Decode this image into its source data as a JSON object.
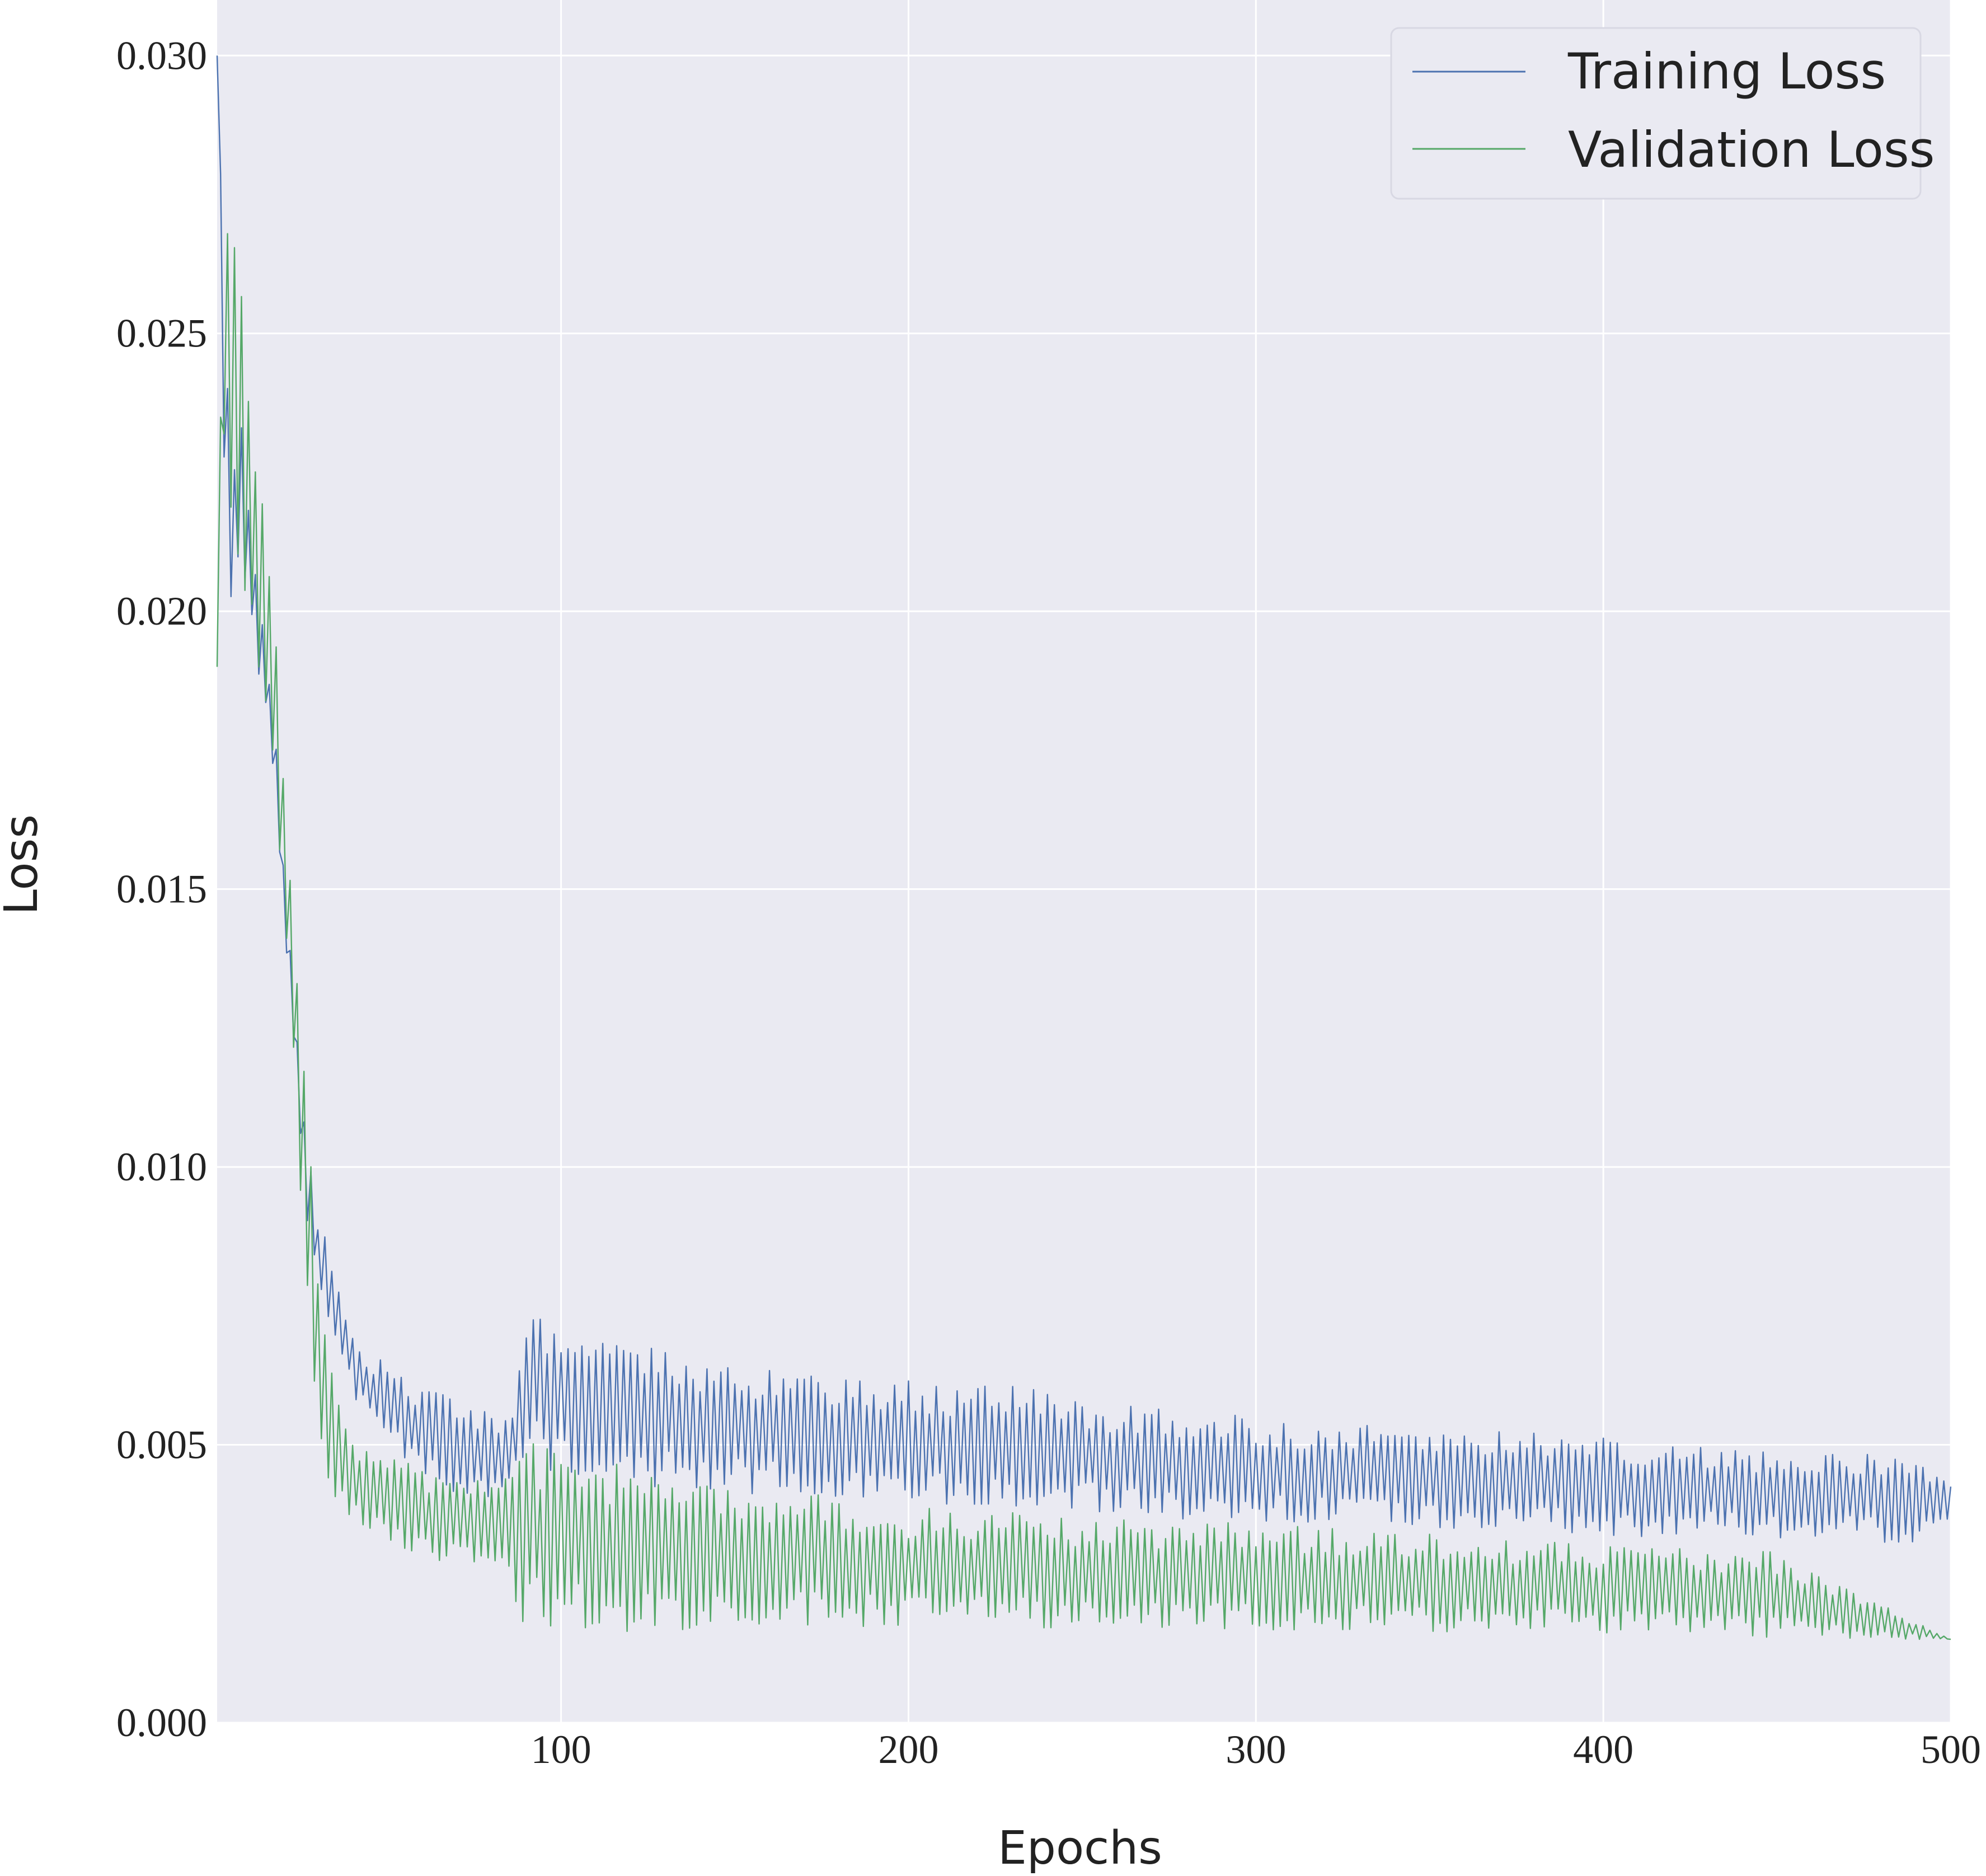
{
  "chart_data": {
    "type": "line",
    "title": "",
    "xlabel": "Epochs",
    "ylabel": "Loss",
    "xlim": [
      1,
      500
    ],
    "ylim": [
      0.0,
      0.031
    ],
    "xticks": [
      100,
      200,
      300,
      400,
      500
    ],
    "xtick_labels": [
      "100",
      "200",
      "300",
      "400",
      "500"
    ],
    "yticks": [
      0.0,
      0.005,
      0.01,
      0.015,
      0.02,
      0.025,
      0.03
    ],
    "ytick_labels": [
      "0.000",
      "0.005",
      "0.010",
      "0.015",
      "0.020",
      "0.025",
      "0.030"
    ],
    "grid": true,
    "legend_position": "top-right",
    "series": [
      {
        "name": "Training Loss",
        "color": "#4c72b0",
        "x": [
          1,
          3,
          5,
          8,
          10,
          12,
          15,
          18,
          20,
          22,
          25,
          27,
          30,
          33,
          36,
          40,
          45,
          50,
          55,
          60,
          70,
          80,
          85,
          90,
          95,
          100,
          110,
          120,
          130,
          140,
          150,
          170,
          190,
          210,
          230,
          250,
          270,
          290,
          310,
          330,
          350,
          370,
          390,
          410,
          430,
          450,
          470,
          490,
          500
        ],
        "y": [
          0.03,
          0.024,
          0.0215,
          0.0222,
          0.021,
          0.02,
          0.0188,
          0.017,
          0.015,
          0.0135,
          0.011,
          0.0098,
          0.0085,
          0.0078,
          0.0072,
          0.0065,
          0.006,
          0.0058,
          0.0055,
          0.0052,
          0.005,
          0.0048,
          0.0048,
          0.0062,
          0.006,
          0.0058,
          0.0058,
          0.0056,
          0.0055,
          0.0054,
          0.0053,
          0.0052,
          0.0051,
          0.005,
          0.005,
          0.0048,
          0.0047,
          0.0046,
          0.0045,
          0.0045,
          0.0044,
          0.0044,
          0.0043,
          0.0042,
          0.0042,
          0.0041,
          0.0041,
          0.004,
          0.004
        ],
        "swing": [
          0.0,
          0.002,
          0.0015,
          0.0012,
          0.001,
          0.001,
          0.0008,
          0.0006,
          0.0006,
          0.0005,
          0.0008,
          0.0008,
          0.0008,
          0.0007,
          0.0006,
          0.0006,
          0.0006,
          0.0008,
          0.0008,
          0.0008,
          0.0009,
          0.0008,
          0.0007,
          0.0013,
          0.0014,
          0.0014,
          0.0014,
          0.0013,
          0.0013,
          0.0012,
          0.0012,
          0.0011,
          0.0011,
          0.0011,
          0.0011,
          0.001,
          0.001,
          0.001,
          0.0009,
          0.0009,
          0.0009,
          0.0009,
          0.0009,
          0.0009,
          0.0008,
          0.0008,
          0.0008,
          0.0008,
          0.0004
        ]
      },
      {
        "name": "Validation Loss",
        "color": "#55a868",
        "x": [
          1,
          3,
          5,
          8,
          10,
          12,
          15,
          18,
          20,
          22,
          25,
          28,
          30,
          33,
          36,
          40,
          45,
          50,
          60,
          70,
          80,
          85,
          88,
          100,
          120,
          150,
          200,
          250,
          300,
          350,
          400,
          450,
          500
        ],
        "y": [
          0.019,
          0.025,
          0.024,
          0.0232,
          0.0225,
          0.021,
          0.0195,
          0.0178,
          0.016,
          0.014,
          0.0115,
          0.009,
          0.0065,
          0.0055,
          0.0048,
          0.0045,
          0.0041,
          0.004,
          0.0038,
          0.0036,
          0.0036,
          0.0036,
          0.0035,
          0.0033,
          0.0031,
          0.003,
          0.0028,
          0.0027,
          0.0026,
          0.0025,
          0.0024,
          0.0023,
          0.0015
        ],
        "swing": [
          0.0,
          0.003,
          0.003,
          0.0028,
          0.0025,
          0.0022,
          0.002,
          0.0018,
          0.0017,
          0.0015,
          0.002,
          0.002,
          0.0015,
          0.0012,
          0.001,
          0.0008,
          0.0008,
          0.0008,
          0.0008,
          0.0008,
          0.0008,
          0.0008,
          0.0018,
          0.0016,
          0.0015,
          0.0013,
          0.0011,
          0.001,
          0.001,
          0.0009,
          0.0008,
          0.0008,
          0.0
        ]
      }
    ]
  }
}
